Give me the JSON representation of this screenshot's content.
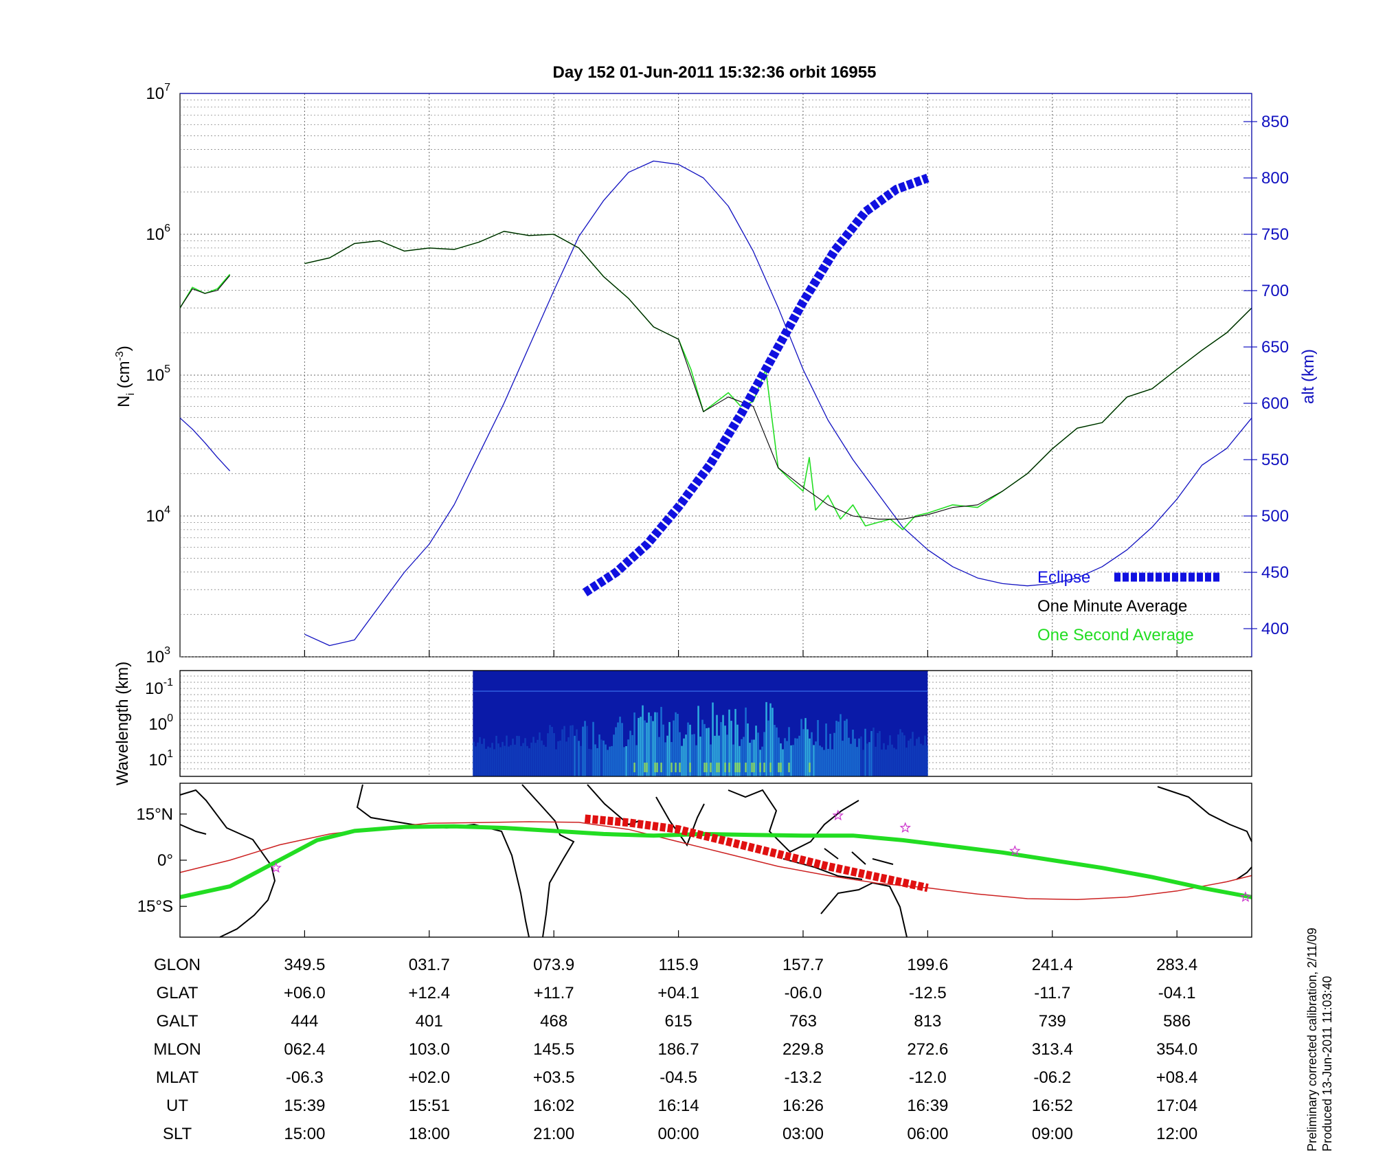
{
  "chart_data": [
    {
      "type": "line",
      "title": "Day 152  01-Jun-2011 15:32:36   orbit 16955",
      "ylabel_main": "N",
      "ylabel_sub": "i",
      "ylabel_unit": " (cm",
      "ylabel_exp": "-3",
      "ylabel_close": ")",
      "yscale": "log",
      "ylim": [
        1000,
        10000000
      ],
      "ytick_exponents": [
        "3",
        "4",
        "5",
        "6",
        "7"
      ],
      "ytick_base": "10",
      "y2label": "alt (km)",
      "y2lim": [
        375,
        875
      ],
      "y2ticks": [
        400,
        450,
        500,
        550,
        600,
        650,
        700,
        750,
        800,
        850
      ],
      "xlim": [
        0,
        8.6
      ],
      "legend": {
        "position": "bottom-right",
        "entries": [
          {
            "label": "Eclipse",
            "color": "#1010e0"
          },
          {
            "label": "One Minute Average",
            "color": "#000000"
          },
          {
            "label": "One Second Average",
            "color": "#22dd22"
          }
        ]
      },
      "series": [
        {
          "name": "One Second Average",
          "color": "#22dd22",
          "segments": [
            {
              "x": [
                0,
                0.1,
                0.2,
                0.3,
                0.4
              ],
              "y": [
                300000,
                420000,
                380000,
                410000,
                520000
              ]
            },
            {
              "x": [
                1,
                1.2,
                1.4,
                1.6,
                1.8,
                2.0,
                2.2,
                2.4,
                2.6,
                2.8,
                3.0,
                3.2,
                3.4,
                3.6,
                3.8,
                4.0,
                4.1,
                4.2,
                4.4,
                4.5,
                4.6,
                4.7,
                4.8,
                4.9,
                5.0,
                5.05,
                5.1,
                5.2,
                5.3,
                5.4,
                5.5,
                5.6,
                5.7,
                5.8,
                5.9,
                6.0,
                6.2,
                6.4,
                6.6,
                6.8,
                7.0,
                7.2,
                7.4,
                7.6,
                7.8,
                8.0,
                8.2,
                8.4,
                8.6
              ],
              "y": [
                620000,
                680000,
                860000,
                900000,
                760000,
                800000,
                780000,
                880000,
                1050000,
                980000,
                1000000,
                800000,
                500000,
                350000,
                220000,
                180000,
                110000,
                55000,
                75000,
                60000,
                65000,
                110000,
                22000,
                18000,
                15000,
                26000,
                11000,
                14000,
                9500,
                12000,
                8500,
                9000,
                9500,
                8000,
                10000,
                10500,
                12000,
                11500,
                15000,
                20000,
                30000,
                42000,
                46000,
                70000,
                80000,
                110000,
                150000,
                200000,
                300000
              ]
            }
          ]
        },
        {
          "name": "One Minute Average",
          "color": "#000000",
          "segments": [
            {
              "x": [
                0,
                0.1,
                0.2,
                0.3,
                0.4
              ],
              "y": [
                300000,
                410000,
                380000,
                400000,
                510000
              ]
            },
            {
              "x": [
                1,
                1.2,
                1.4,
                1.6,
                1.8,
                2.0,
                2.2,
                2.4,
                2.6,
                2.8,
                3.0,
                3.2,
                3.4,
                3.6,
                3.8,
                4.0,
                4.2,
                4.4,
                4.6,
                4.8,
                5.0,
                5.2,
                5.4,
                5.6,
                5.8,
                6.0,
                6.2,
                6.4,
                6.6,
                6.8,
                7.0,
                7.2,
                7.4,
                7.6,
                7.8,
                8.0,
                8.2,
                8.4,
                8.6
              ],
              "y": [
                620000,
                680000,
                860000,
                900000,
                760000,
                800000,
                780000,
                880000,
                1050000,
                980000,
                1000000,
                800000,
                500000,
                350000,
                220000,
                180000,
                55000,
                70000,
                60000,
                22000,
                16000,
                12000,
                10000,
                9500,
                9500,
                10200,
                11500,
                12000,
                15000,
                20000,
                30000,
                42000,
                46000,
                70000,
                80000,
                110000,
                150000,
                200000,
                300000
              ]
            }
          ]
        }
      ],
      "altitude": {
        "name": "alt",
        "color": "#1010c0",
        "segments": [
          {
            "x": [
              0,
              0.1,
              0.2,
              0.3,
              0.4
            ],
            "y": [
              587,
              577,
              565,
              552,
              540
            ]
          },
          {
            "x": [
              1,
              1.2,
              1.4,
              1.6,
              1.8,
              2.0,
              2.2,
              2.4,
              2.6,
              2.8,
              3.0,
              3.2,
              3.4,
              3.6,
              3.8,
              4.0,
              4.2,
              4.4,
              4.6,
              4.8,
              5.0,
              5.2,
              5.4,
              5.6,
              5.8,
              6.0,
              6.2,
              6.4,
              6.6,
              6.8,
              7.0,
              7.2,
              7.4,
              7.6,
              7.8,
              8.0,
              8.2,
              8.4,
              8.6
            ],
            "y": [
              395,
              385,
              390,
              420,
              450,
              475,
              510,
              555,
              600,
              650,
              700,
              748,
              780,
              805,
              815,
              812,
              800,
              775,
              735,
              685,
              630,
              585,
              550,
              520,
              490,
              470,
              455,
              445,
              440,
              438,
              440,
              445,
              455,
              470,
              490,
              515,
              545,
              560,
              587
            ]
          }
        ]
      },
      "eclipse": {
        "x": [
          3.25,
          3.5,
          3.75,
          4.0,
          4.25,
          4.5,
          4.75,
          5.0,
          5.25,
          5.5,
          5.75,
          6.0
        ],
        "alt": [
          432,
          450,
          475,
          508,
          545,
          590,
          640,
          690,
          735,
          770,
          790,
          800
        ]
      }
    },
    {
      "type": "heatmap",
      "ylabel": "Wavelength (km)",
      "ytick_exponents": [
        "-1",
        "0",
        "1"
      ],
      "ytick_base": "10",
      "x_extent": [
        2.35,
        6.0
      ]
    },
    {
      "type": "line",
      "ytick_labels": [
        "15°N",
        "0°",
        "15°S"
      ],
      "ylim": [
        -25,
        25
      ],
      "dip_equator": {
        "color": "#22dd22",
        "lon": [
          0,
          0.4,
          1.1,
          1.4,
          1.8,
          2.2,
          2.6,
          3.0,
          3.4,
          3.8,
          4.2,
          4.6,
          5.0,
          5.4,
          5.8,
          6.2,
          6.6,
          7.0,
          7.4,
          7.8,
          8.2,
          8.6
        ],
        "lat": [
          -12,
          -8.5,
          6.5,
          9.5,
          10.8,
          11,
          10.5,
          9.5,
          8.5,
          8,
          8.5,
          8.2,
          8,
          8,
          6.5,
          4.5,
          2.5,
          0,
          -2.5,
          -5.5,
          -9,
          -12
        ]
      },
      "track": {
        "color": "#cc2020",
        "lon": [
          0,
          0.4,
          0.8,
          1.2,
          1.6,
          2.0,
          2.4,
          2.8,
          3.2,
          3.6,
          4.0,
          4.4,
          4.8,
          5.2,
          5.6,
          6.0,
          6.4,
          6.8,
          7.2,
          7.6,
          8.0,
          8.4,
          8.6
        ],
        "lat": [
          -4,
          0,
          5,
          8.5,
          10.5,
          12,
          12.2,
          12.5,
          12.3,
          10,
          6,
          2,
          -2,
          -5,
          -7.5,
          -9,
          -11,
          -12.5,
          -12.8,
          -12,
          -10,
          -7,
          -5
        ]
      },
      "eclipse_track": {
        "lon": [
          3.25,
          3.6,
          4.0,
          4.4,
          4.8,
          5.2,
          5.6,
          6.0
        ],
        "lat": [
          13.5,
          12.2,
          10,
          6,
          2,
          -2,
          -5.5,
          -9
        ]
      },
      "stars": {
        "lon": [
          0.77,
          5.28,
          5.82,
          6.7,
          8.55
        ],
        "lat": [
          -2.5,
          14.5,
          10.5,
          3,
          -12
        ]
      }
    }
  ],
  "table": {
    "row_labels": [
      "GLON",
      "GLAT",
      "GALT",
      "MLON",
      "MLAT",
      "UT",
      "SLT"
    ],
    "columns": [
      [
        "349.5",
        "+06.0",
        "444",
        "062.4",
        "-06.3",
        "15:39",
        "15:00"
      ],
      [
        "031.7",
        "+12.4",
        "401",
        "103.0",
        "+02.0",
        "15:51",
        "18:00"
      ],
      [
        "073.9",
        "+11.7",
        "468",
        "145.5",
        "+03.5",
        "16:02",
        "21:00"
      ],
      [
        "115.9",
        "+04.1",
        "615",
        "186.7",
        "-04.5",
        "16:14",
        "00:00"
      ],
      [
        "157.7",
        "-06.0",
        "763",
        "229.8",
        "-13.2",
        "16:26",
        "03:00"
      ],
      [
        "199.6",
        "-12.5",
        "813",
        "272.6",
        "-12.0",
        "16:39",
        "06:00"
      ],
      [
        "241.4",
        "-11.7",
        "739",
        "313.4",
        "-06.2",
        "16:52",
        "09:00"
      ],
      [
        "283.4",
        "-04.1",
        "586",
        "354.0",
        "+08.4",
        "17:04",
        "12:00"
      ]
    ]
  },
  "footnote": {
    "line1": "Preliminary corrected calibration, 2/11/09",
    "line2": "Produced 13-Jun-2011 11:03:40"
  }
}
